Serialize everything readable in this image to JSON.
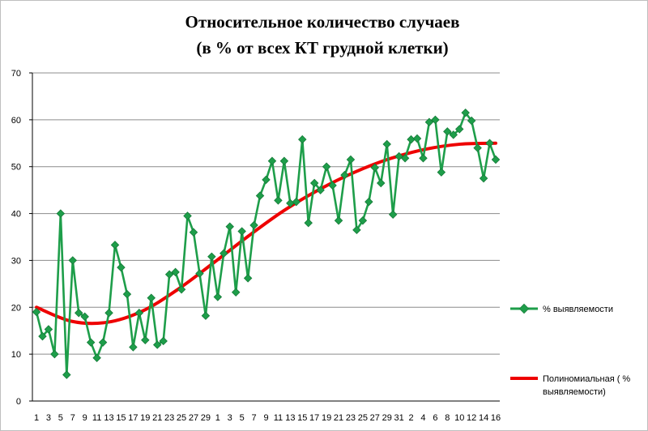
{
  "chart_data": {
    "type": "line",
    "title_lines": [
      "Относительное количество случаев",
      "(в % от всех КТ грудной клетки)"
    ],
    "xlabel": "",
    "ylabel": "",
    "ylim": [
      0,
      70
    ],
    "yticks": [
      0,
      10,
      20,
      30,
      40,
      50,
      60,
      70
    ],
    "grid": "horizontal",
    "legend_position": "right",
    "colors": {
      "series": "#1e9e4a",
      "trend": "#ee0000",
      "grid": "#8c8c8c"
    },
    "x_tick_labels": [
      "1",
      "3",
      "5",
      "7",
      "9",
      "11",
      "13",
      "15",
      "17",
      "19",
      "21",
      "23",
      "25",
      "27",
      "29",
      "1",
      "3",
      "5",
      "7",
      "9",
      "11",
      "13",
      "15",
      "17",
      "19",
      "21",
      "23",
      "25",
      "27",
      "29",
      "31",
      "2",
      "4",
      "6",
      "8",
      "10",
      "12",
      "14",
      "16"
    ],
    "series": [
      {
        "name": "% выявляемости",
        "marker": "diamond",
        "values": [
          19,
          13.8,
          15.3,
          10,
          40,
          5.6,
          30,
          18.8,
          18,
          12.5,
          9.2,
          12.5,
          18.8,
          33.3,
          28.5,
          22.8,
          11.5,
          18.8,
          13,
          22,
          12,
          12.8,
          27,
          27.5,
          23.8,
          39.5,
          36,
          27.2,
          18.2,
          30.8,
          22.2,
          31.5,
          37.2,
          23.2,
          36.2,
          26.2,
          37.5,
          43.8,
          47.2,
          51.2,
          42.8,
          51.2,
          42.2,
          42.5,
          55.8,
          38,
          46.5,
          45,
          50,
          46,
          38.5,
          48.2,
          51.5,
          36.5,
          38.5,
          42.5,
          49.8,
          46.5,
          54.8,
          39.8,
          52.2,
          51.8,
          55.8,
          56,
          51.8,
          59.5,
          60,
          48.8,
          57.5,
          56.8,
          58,
          61.5,
          59.8,
          54,
          47.5,
          55,
          51.5
        ]
      },
      {
        "name": "Полиномиальная ( % выявляемости)",
        "type": "polynomial-trendline",
        "values": [
          20.0,
          17.0,
          16.8,
          19.2,
          23.8,
          29.4,
          35.2,
          40.6,
          45.1,
          48.8,
          51.7,
          53.7,
          54.8,
          55.0
        ]
      }
    ]
  },
  "legend": {
    "series_label": "% выявляемости",
    "trend_label_line1": "Полиномиальная ( %",
    "trend_label_line2": "выявляемости)"
  }
}
